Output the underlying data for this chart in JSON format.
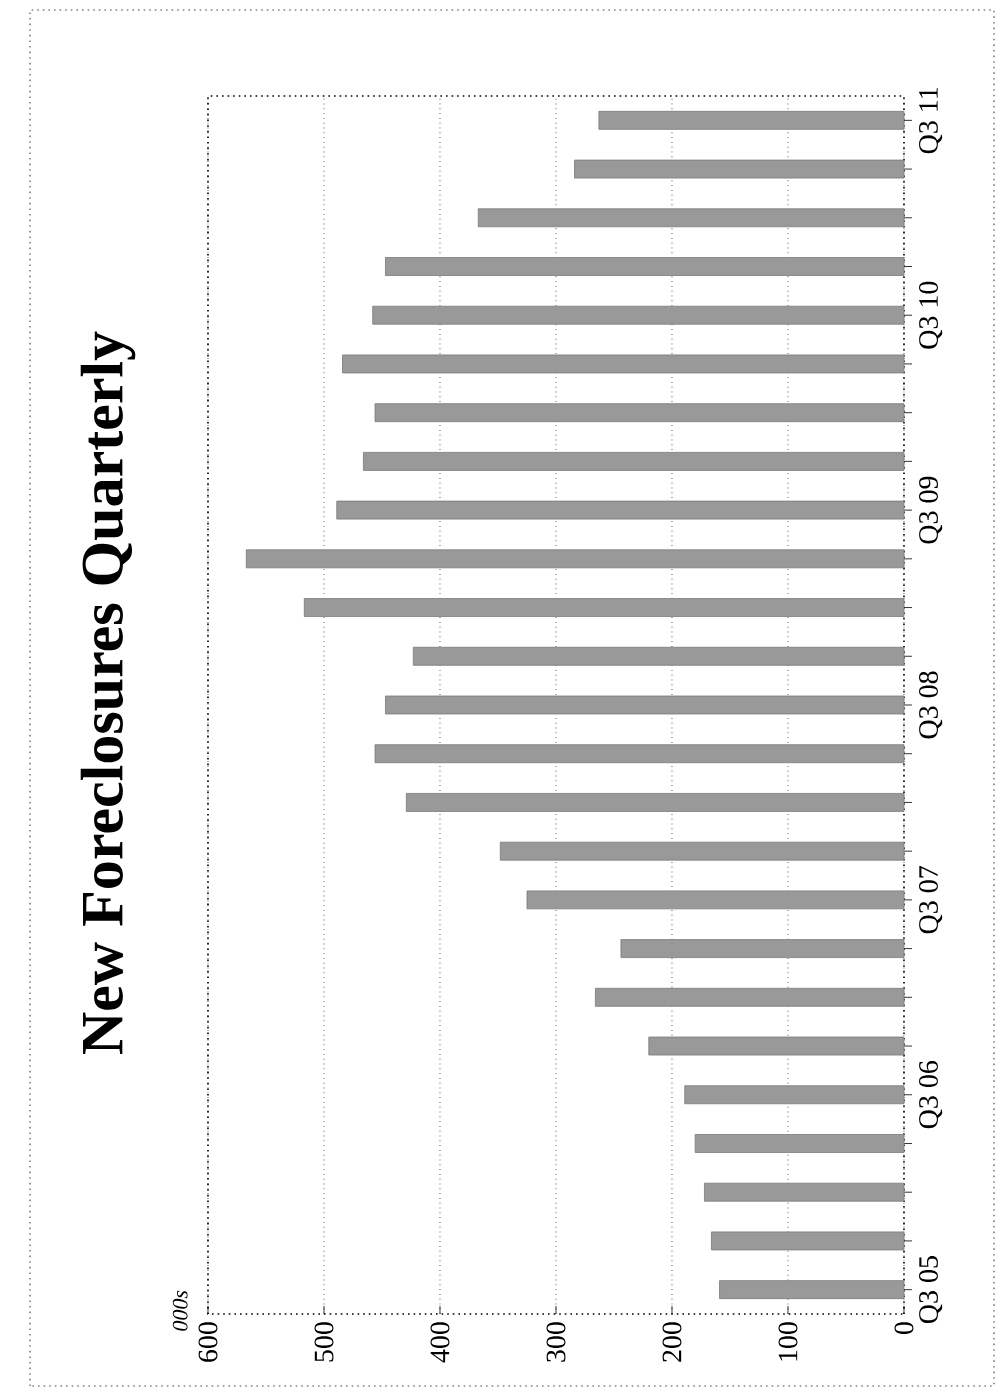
{
  "chart_data": {
    "type": "bar",
    "orientation": "horizontal",
    "title": "New Foreclosures Quarterly",
    "annotations": [
      "000s"
    ],
    "categories": [
      "Q3 11",
      null,
      null,
      null,
      "Q3 10",
      null,
      null,
      null,
      "Q3 09",
      null,
      null,
      null,
      "Q3 08",
      null,
      null,
      null,
      "Q3 07",
      null,
      null,
      null,
      "Q3 06",
      null,
      null,
      null,
      "Q3 05"
    ],
    "values": [
      263,
      284,
      367,
      447,
      458,
      484,
      456,
      466,
      489,
      567,
      517,
      423,
      447,
      456,
      429,
      348,
      325,
      244,
      266,
      220,
      189,
      180,
      172,
      166,
      159
    ],
    "color": "#999999",
    "xlim": [
      600,
      0
    ],
    "xticks": [
      600,
      500,
      400,
      300,
      200,
      100,
      0
    ],
    "grid": "x"
  }
}
